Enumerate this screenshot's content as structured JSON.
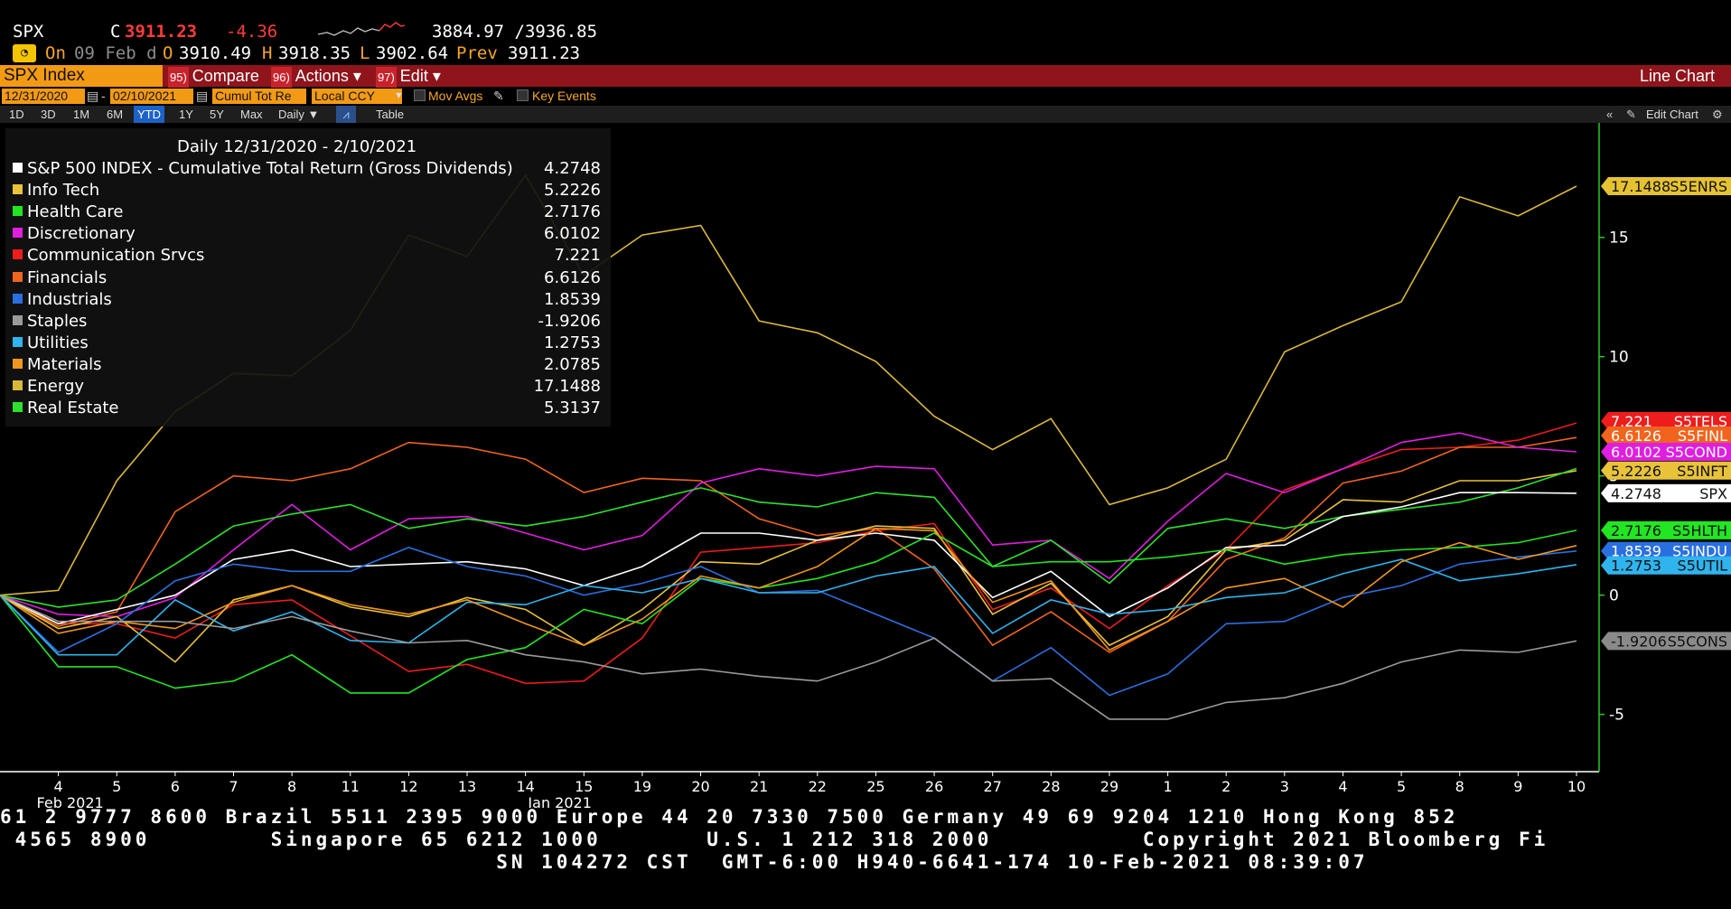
{
  "header": {
    "ticker": "SPX",
    "close_label": "C",
    "close": "3911.23",
    "change": "-4.36",
    "range": "3884.97 /3936.85",
    "on_label": "On",
    "date": "09 Feb d",
    "open_label": "O",
    "open": "3910.49",
    "high_label": "H",
    "high": "3918.35",
    "low_label": "L",
    "low": "3902.64",
    "prev_label": "Prev",
    "prev": "3911.23"
  },
  "toolbar": {
    "security": "SPX Index",
    "compare_num": "95)",
    "compare": "Compare",
    "actions_num": "96)",
    "actions": "Actions ▾",
    "edit_num": "97)",
    "edit": "Edit ▾",
    "chart_type": "Line Chart"
  },
  "params": {
    "start": "12/31/2020",
    "dash": "-",
    "end": "02/10/2021",
    "field": "Cumul Tot Re",
    "currency": "Local CCY",
    "mov_avgs": "Mov Avgs",
    "key_events": "Key Events"
  },
  "periods": [
    "1D",
    "3D",
    "1M",
    "6M",
    "YTD",
    "1Y",
    "5Y",
    "Max"
  ],
  "frequency": "Daily ▼",
  "table_label": "Table",
  "edit_chart": "Edit Chart",
  "legend": {
    "title": "Daily 12/31/2020 - 2/10/2021",
    "items": [
      {
        "name": "S&P 500 INDEX - Cumulative Total Return (Gross Dividends)",
        "value": "4.2748",
        "color": "#ffffff"
      },
      {
        "name": "Info Tech",
        "value": "5.2226",
        "color": "#e8c33a"
      },
      {
        "name": "Health Care",
        "value": "2.7176",
        "color": "#22e622"
      },
      {
        "name": "Discretionary",
        "value": "6.0102",
        "color": "#e01ee0"
      },
      {
        "name": "Communication Srvcs",
        "value": "7.221",
        "color": "#ee1c1c"
      },
      {
        "name": "Financials",
        "value": "6.6126",
        "color": "#f0641e"
      },
      {
        "name": "Industrials",
        "value": "1.8539",
        "color": "#2a6fe0"
      },
      {
        "name": "Staples",
        "value": "-1.9206",
        "color": "#9a9a9a"
      },
      {
        "name": "Utilities",
        "value": "1.2753",
        "color": "#2fb4ee"
      },
      {
        "name": "Materials",
        "value": "2.0785",
        "color": "#f0961e"
      },
      {
        "name": "Energy",
        "value": "17.1488",
        "color": "#d9b83a"
      },
      {
        "name": "Real Estate",
        "value": "5.3137",
        "color": "#2ee02e"
      }
    ]
  },
  "tags": [
    {
      "value": "17.1488",
      "code": "S5ENRS",
      "bg": "#e5c232",
      "fg": "#111111"
    },
    {
      "value": "7.221",
      "code": "S5TELS",
      "bg": "#ee1c1c",
      "fg": "#ffffff"
    },
    {
      "value": "6.6126",
      "code": "S5FINL",
      "bg": "#f0641e",
      "fg": "#ffffff"
    },
    {
      "value": "6.0102",
      "code": "S5COND",
      "bg": "#e01ee0",
      "fg": "#ffffff"
    },
    {
      "value": "5.2226",
      "code": "S5INFT",
      "bg": "#e8c33a",
      "fg": "#111111"
    },
    {
      "value": "4.2748",
      "code": "SPX",
      "bg": "#ffffff",
      "fg": "#111111"
    },
    {
      "value": "2.7176",
      "code": "S5HLTH",
      "bg": "#22e622",
      "fg": "#111111"
    },
    {
      "value": "1.8539",
      "code": "S5INDU",
      "bg": "#2a6fe0",
      "fg": "#ffffff"
    },
    {
      "value": "1.2753",
      "code": "S5UTIL",
      "bg": "#2fb4ee",
      "fg": "#111111"
    },
    {
      "value": "-1.9206",
      "code": "S5CONS",
      "bg": "#8a8a8a",
      "fg": "#111111"
    }
  ],
  "tape": {
    "line1": "61 2 9777 8600 Brazil 5511 2395 9000 Europe 44 20 7330 7500 Germany 49 69 9204 1210 Hong Kong 852",
    "line2": " 4565 8900        Singapore 65 6212 1000       U.S. 1 212 318 2000          Copyright 2021 Bloomberg Fi",
    "line3": "                                 SN 104272 CST  GMT-6:00 H940-6641-174 10-Feb-2021 08:39:07"
  },
  "chart_data": {
    "type": "line",
    "x": [
      "12/31",
      "4",
      "5",
      "6",
      "7",
      "8",
      "11",
      "12",
      "13",
      "14",
      "15",
      "19",
      "20",
      "21",
      "22",
      "25",
      "26",
      "27",
      "28",
      "29",
      "1",
      "2",
      "3",
      "4",
      "5",
      "8",
      "9",
      "10"
    ],
    "x_tick_labels": [
      "4",
      "5",
      "6",
      "7",
      "8",
      "11",
      "12",
      "13",
      "14",
      "15",
      "19",
      "20",
      "21",
      "22",
      "25",
      "26",
      "27",
      "28",
      "29",
      "1",
      "2",
      "3",
      "4",
      "5",
      "8",
      "9",
      "10"
    ],
    "month_labels": [
      {
        "label": "Jan 2021",
        "at": "14"
      },
      {
        "label": "Feb 2021",
        "at": "4"
      }
    ],
    "ylim": [
      -7.4,
      19.8
    ],
    "y_ticks": [
      15,
      10,
      5,
      0,
      -5
    ],
    "grid": false,
    "legend": "top-left",
    "series": [
      {
        "name": "Energy",
        "color": "#d9b83a",
        "values": [
          0,
          0.2,
          4.8,
          7.7,
          9.3,
          9.2,
          11.1,
          15.1,
          14.2,
          17.6,
          13.4,
          15.1,
          15.5,
          11.5,
          11.0,
          9.8,
          7.5,
          6.1,
          7.4,
          3.8,
          4.5,
          5.7,
          10.2,
          11.3,
          12.3,
          16.7,
          15.9,
          17.15
        ]
      },
      {
        "name": "Communication Srvcs",
        "color": "#ee1c1c",
        "values": [
          0,
          -1.2,
          -1.2,
          -1.8,
          -0.4,
          -0.2,
          -1.7,
          -3.2,
          -2.9,
          -3.7,
          -3.6,
          -1.8,
          1.8,
          2.0,
          2.2,
          2.7,
          3.0,
          -0.6,
          0.3,
          -1.4,
          0.4,
          1.9,
          4.4,
          5.3,
          6.1,
          6.2,
          6.5,
          7.22
        ]
      },
      {
        "name": "Financials",
        "color": "#f0641e",
        "values": [
          0,
          -1.3,
          -0.7,
          3.5,
          5.0,
          4.8,
          5.3,
          6.4,
          6.2,
          5.7,
          4.3,
          4.9,
          4.8,
          3.2,
          2.5,
          2.8,
          1.1,
          -2.1,
          -0.7,
          -2.4,
          -1.1,
          1.5,
          2.4,
          4.7,
          5.2,
          6.2,
          6.2,
          6.61
        ]
      },
      {
        "name": "Discretionary",
        "color": "#e01ee0",
        "values": [
          0,
          -0.8,
          -0.9,
          -0.1,
          1.9,
          3.8,
          1.9,
          3.2,
          3.3,
          2.6,
          1.9,
          2.5,
          4.7,
          5.3,
          5.0,
          5.4,
          5.3,
          2.1,
          2.3,
          0.7,
          3.1,
          5.1,
          4.3,
          5.3,
          6.4,
          6.8,
          6.2,
          6.01
        ]
      },
      {
        "name": "Info Tech",
        "color": "#e8c33a",
        "values": [
          0,
          -1.4,
          -0.9,
          -2.8,
          -0.2,
          0.4,
          -0.5,
          -0.9,
          -0.1,
          -0.6,
          -2.1,
          -0.6,
          1.4,
          1.3,
          2.3,
          2.9,
          2.8,
          -0.8,
          0.5,
          -2.1,
          -0.9,
          1.9,
          2.3,
          4.0,
          3.9,
          4.8,
          4.8,
          5.22
        ]
      },
      {
        "name": "Real Estate",
        "color": "#2ee02e",
        "values": [
          0,
          -0.5,
          -0.2,
          1.3,
          2.9,
          3.4,
          3.8,
          2.8,
          3.2,
          2.9,
          3.3,
          3.9,
          4.5,
          3.9,
          3.7,
          4.3,
          4.1,
          1.2,
          2.3,
          0.5,
          2.8,
          3.2,
          2.8,
          3.3,
          3.6,
          3.9,
          4.5,
          5.31
        ]
      },
      {
        "name": "S&P 500 INDEX - Cumulative Total Return (Gross Dividends)",
        "color": "#ffffff",
        "values": [
          0,
          -1.2,
          -0.6,
          0.0,
          1.5,
          1.9,
          1.2,
          1.3,
          1.4,
          1.1,
          0.4,
          1.2,
          2.6,
          2.6,
          2.3,
          2.6,
          2.3,
          -0.1,
          1.0,
          -0.9,
          0.3,
          2.0,
          2.1,
          3.3,
          3.7,
          4.3,
          4.3,
          4.27
        ]
      },
      {
        "name": "Health Care",
        "color": "#22e622",
        "values": [
          0,
          -3.0,
          -3.0,
          -3.9,
          -3.6,
          -2.5,
          -4.1,
          -4.1,
          -2.7,
          -2.2,
          -0.6,
          -1.2,
          0.7,
          0.3,
          0.7,
          1.4,
          2.6,
          1.2,
          1.4,
          1.4,
          1.6,
          1.9,
          1.3,
          1.7,
          1.9,
          2.0,
          2.2,
          2.72
        ]
      },
      {
        "name": "Industrials",
        "color": "#2a6fe0",
        "values": [
          0,
          -2.4,
          -1.2,
          0.6,
          1.3,
          1.0,
          1.0,
          2.0,
          1.2,
          0.8,
          0.0,
          0.5,
          1.2,
          0.1,
          0.2,
          -0.8,
          -1.8,
          -3.6,
          -2.2,
          -4.2,
          -3.3,
          -1.2,
          -1.1,
          -0.1,
          0.4,
          1.3,
          1.6,
          1.85
        ]
      },
      {
        "name": "Utilities",
        "color": "#2fb4ee",
        "values": [
          0,
          -2.5,
          -2.5,
          -0.2,
          -1.5,
          -0.7,
          -1.9,
          -2.0,
          -0.3,
          -0.4,
          0.4,
          0.1,
          0.7,
          0.1,
          0.1,
          0.8,
          1.2,
          -1.6,
          -0.2,
          -0.8,
          -0.6,
          -0.1,
          0.1,
          0.9,
          1.5,
          0.6,
          0.9,
          1.28
        ]
      },
      {
        "name": "Materials",
        "color": "#f0961e",
        "values": [
          0,
          -1.6,
          -1.1,
          -1.4,
          -0.3,
          0.4,
          -0.4,
          -0.8,
          -0.2,
          -1.2,
          -2.1,
          -1.0,
          0.8,
          0.3,
          1.2,
          2.8,
          2.7,
          -0.3,
          0.6,
          -2.3,
          -1.1,
          0.3,
          0.7,
          -0.5,
          1.4,
          2.2,
          1.5,
          2.08
        ]
      },
      {
        "name": "Staples",
        "color": "#9a9a9a",
        "values": [
          0,
          -1.1,
          -1.1,
          -1.1,
          -1.4,
          -0.9,
          -1.5,
          -2.0,
          -1.9,
          -2.5,
          -2.8,
          -3.3,
          -3.1,
          -3.4,
          -3.6,
          -2.8,
          -1.8,
          -3.6,
          -3.5,
          -5.2,
          -5.2,
          -4.5,
          -4.3,
          -3.7,
          -2.8,
          -2.3,
          -2.4,
          -1.92
        ]
      }
    ]
  }
}
